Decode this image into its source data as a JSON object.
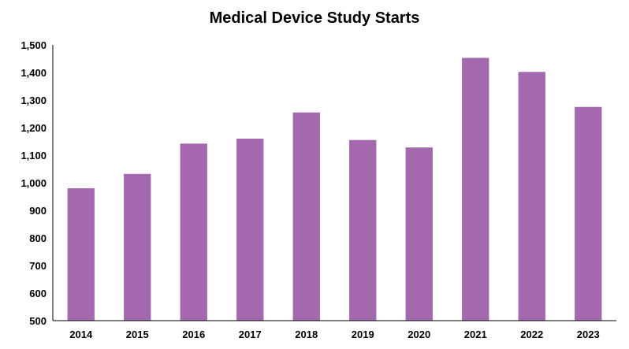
{
  "chart_data": {
    "type": "bar",
    "title": "Medical Device Study Starts",
    "xlabel": "",
    "ylabel": "",
    "categories": [
      "2014",
      "2015",
      "2016",
      "2017",
      "2018",
      "2019",
      "2020",
      "2021",
      "2022",
      "2023"
    ],
    "values": [
      980,
      1032,
      1142,
      1160,
      1255,
      1155,
      1128,
      1453,
      1402,
      1275
    ],
    "ylim": [
      500,
      1500
    ],
    "yticks": [
      500,
      600,
      700,
      800,
      900,
      1000,
      1100,
      1200,
      1300,
      1400,
      1500
    ],
    "ytick_labels": [
      "500",
      "600",
      "700",
      "800",
      "900",
      "1,000",
      "1,100",
      "1,200",
      "1,300",
      "1,400",
      "1,500"
    ],
    "bar_color": "#a368ad",
    "grid": false,
    "legend": "none"
  }
}
